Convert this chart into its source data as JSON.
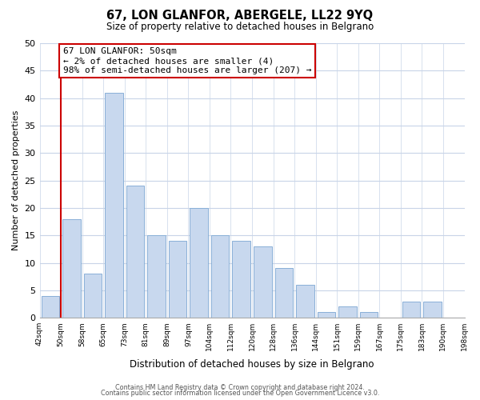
{
  "title": "67, LON GLANFOR, ABERGELE, LL22 9YQ",
  "subtitle": "Size of property relative to detached houses in Belgrano",
  "xlabel": "Distribution of detached houses by size in Belgrano",
  "ylabel": "Number of detached properties",
  "bar_color": "#c8d8ee",
  "bar_edge_color": "#8ab0d8",
  "bins": [
    "42sqm",
    "50sqm",
    "58sqm",
    "65sqm",
    "73sqm",
    "81sqm",
    "89sqm",
    "97sqm",
    "104sqm",
    "112sqm",
    "120sqm",
    "128sqm",
    "136sqm",
    "144sqm",
    "151sqm",
    "159sqm",
    "167sqm",
    "175sqm",
    "183sqm",
    "190sqm",
    "198sqm"
  ],
  "values": [
    4,
    18,
    8,
    41,
    24,
    15,
    14,
    20,
    15,
    14,
    13,
    9,
    6,
    1,
    2,
    1,
    0,
    3,
    3,
    0
  ],
  "ylim": [
    0,
    50
  ],
  "yticks": [
    0,
    5,
    10,
    15,
    20,
    25,
    30,
    35,
    40,
    45,
    50
  ],
  "annotation_line1": "67 LON GLANFOR: 50sqm",
  "annotation_line2": "← 2% of detached houses are smaller (4)",
  "annotation_line3": "98% of semi-detached houses are larger (207) →",
  "vline_color": "#cc0000",
  "vline_bin_index": 1,
  "footer1": "Contains HM Land Registry data © Crown copyright and database right 2024.",
  "footer2": "Contains public sector information licensed under the Open Government Licence v3.0.",
  "background_color": "#ffffff",
  "grid_color": "#c8d4e8"
}
